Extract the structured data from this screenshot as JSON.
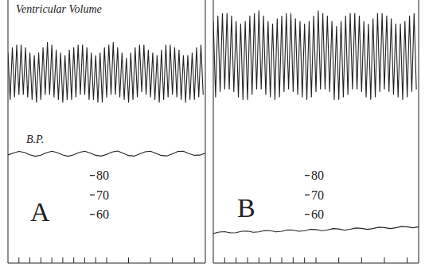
{
  "chart_data": [
    {
      "type": "line",
      "title": "A",
      "xlim": [
        0,
        18
      ],
      "xticks": [
        1,
        2,
        3,
        4,
        5,
        6,
        7,
        8,
        9,
        10,
        11,
        12,
        13,
        14,
        15,
        16,
        17
      ],
      "ylim": [
        35,
        170
      ],
      "yticks": [
        60,
        70,
        80
      ],
      "y2lim": [
        0,
        100
      ],
      "y2ticks": [],
      "tick_labels": "y",
      "grid": false,
      "series": [
        {
          "name": "Ventricular Volume",
          "color": "#222222",
          "axis": "y2",
          "x": [
            0,
            0.2,
            0.4,
            0.6,
            0.8,
            1,
            1.2,
            1.4,
            1.6,
            1.8,
            2,
            2.2,
            2.4,
            2.6,
            2.8,
            3,
            3.2,
            3.4,
            3.6,
            3.8,
            4,
            4.2,
            4.4,
            4.6,
            4.8,
            5,
            5.2,
            5.4,
            5.6,
            5.8,
            6,
            6.2,
            6.4,
            6.6,
            6.8,
            7,
            7.2,
            7.4,
            7.6,
            7.8,
            8,
            8.2,
            8.4,
            8.6,
            8.8,
            9,
            9.2,
            9.4,
            9.6,
            9.8,
            10,
            10.2,
            10.4,
            10.6,
            10.8,
            11,
            11.2,
            11.4,
            11.6,
            11.8,
            12,
            12.2,
            12.4,
            12.6,
            12.8,
            13,
            13.2,
            13.4,
            13.6,
            13.8,
            14,
            14.2,
            14.4,
            14.6,
            14.8,
            15,
            15.2,
            15.4,
            15.6,
            15.8,
            16,
            16.2,
            16.4,
            16.6,
            16.8,
            17,
            17.2,
            17.4,
            17.6,
            17.8
          ],
          "values": [
            80,
            62,
            82,
            63,
            83,
            64,
            83,
            64,
            82,
            63,
            80,
            62,
            79,
            61,
            80,
            62,
            82,
            64,
            84,
            64,
            83,
            63,
            81,
            62,
            80,
            61,
            79,
            62,
            81,
            62,
            82,
            63,
            83,
            64,
            83,
            64,
            82,
            62,
            80,
            62,
            79,
            61,
            80,
            61,
            82,
            63,
            83,
            64,
            84,
            64,
            82,
            63,
            80,
            62,
            78,
            61,
            80,
            62,
            82,
            63,
            83,
            65,
            83,
            64,
            81,
            63,
            80,
            62,
            79,
            61,
            81,
            62,
            83,
            63,
            83,
            64,
            82,
            63,
            81,
            62,
            79,
            61,
            79,
            62,
            80,
            62,
            82,
            63,
            83,
            64
          ]
        },
        {
          "name": "B.P.",
          "color": "#222222",
          "x": [
            0,
            0.5,
            1,
            1.5,
            2,
            2.5,
            3,
            3.5,
            4,
            4.5,
            5,
            5.5,
            6,
            6.5,
            7,
            7.5,
            8,
            8.5,
            9,
            9.5,
            10,
            10.5,
            11,
            11.5,
            12,
            12.5,
            13,
            13.5,
            14,
            14.5,
            15,
            15.5,
            16,
            16.5,
            17,
            17.5,
            18
          ],
          "values": [
            90.5,
            91.5,
            92.3,
            91.8,
            90.6,
            89.8,
            90.4,
            91.6,
            92.4,
            91.7,
            90.5,
            89.8,
            90.6,
            91.8,
            92.4,
            91.5,
            90.3,
            89.9,
            90.8,
            92,
            92.5,
            91.4,
            90.2,
            89.9,
            91,
            92.1,
            92.4,
            91.3,
            90.2,
            90,
            91.1,
            92.3,
            92.4,
            91.2,
            90.3,
            90.4,
            91.4
          ]
        }
      ]
    },
    {
      "type": "line",
      "title": "B",
      "xlim": [
        0,
        18
      ],
      "xticks": [
        1,
        2,
        3,
        4,
        5,
        6,
        7,
        8,
        9,
        10,
        11,
        12,
        13,
        14,
        15,
        16,
        17
      ],
      "ylim": [
        35,
        170
      ],
      "yticks": [
        60,
        70,
        80
      ],
      "y2lim": [
        0,
        100
      ],
      "y2ticks": [],
      "tick_labels": "y",
      "grid": false,
      "series": [
        {
          "color": "#222222",
          "axis": "y2",
          "x": [
            0,
            0.2,
            0.4,
            0.6,
            0.8,
            1,
            1.2,
            1.4,
            1.6,
            1.8,
            2,
            2.2,
            2.4,
            2.6,
            2.8,
            3,
            3.2,
            3.4,
            3.6,
            3.8,
            4,
            4.2,
            4.4,
            4.6,
            4.8,
            5,
            5.2,
            5.4,
            5.6,
            5.8,
            6,
            6.2,
            6.4,
            6.6,
            6.8,
            7,
            7.2,
            7.4,
            7.6,
            7.8,
            8,
            8.2,
            8.4,
            8.6,
            8.8,
            9,
            9.2,
            9.4,
            9.6,
            9.8,
            10,
            10.2,
            10.4,
            10.6,
            10.8,
            11,
            11.2,
            11.4,
            11.6,
            11.8,
            12,
            12.2,
            12.4,
            12.6,
            12.8,
            13,
            13.2,
            13.4,
            13.6,
            13.8,
            14,
            14.2,
            14.4,
            14.6,
            14.8,
            15,
            15.2,
            15.4,
            15.6,
            15.8,
            16,
            16.2,
            16.4,
            16.6,
            16.8,
            17,
            17.2,
            17.4,
            17.6,
            17.8
          ],
          "values": [
            92,
            63,
            94,
            65,
            95,
            66,
            95,
            66,
            94,
            65,
            92,
            63,
            91,
            62,
            92,
            62,
            94,
            64,
            95,
            66,
            96,
            66,
            94,
            64,
            92,
            63,
            91,
            62,
            93,
            63,
            94,
            65,
            95,
            66,
            95,
            65,
            93,
            64,
            92,
            63,
            91,
            62,
            92,
            63,
            94,
            65,
            96,
            66,
            95,
            66,
            94,
            65,
            92,
            62,
            90,
            62,
            92,
            63,
            94,
            64,
            95,
            66,
            95,
            66,
            94,
            65,
            92,
            63,
            91,
            62,
            93,
            63,
            95,
            65,
            95,
            66,
            94,
            65,
            93,
            64,
            91,
            63,
            91,
            62,
            92,
            63,
            94,
            65,
            95,
            66
          ]
        },
        {
          "color": "#222222",
          "x": [
            0,
            0.5,
            1,
            1.5,
            2,
            2.5,
            3,
            3.5,
            4,
            4.5,
            5,
            5.5,
            6,
            6.5,
            7,
            7.5,
            8,
            8.5,
            9,
            9.5,
            10,
            10.5,
            11,
            11.5,
            12,
            12.5,
            13,
            13.5,
            14,
            14.5,
            15,
            15.5,
            16,
            16.5,
            17,
            17.5,
            18
          ],
          "values": [
            50.2,
            50.9,
            51.1,
            50.5,
            50.6,
            51.3,
            51.4,
            50.8,
            51,
            51.7,
            51.6,
            51,
            51.3,
            52,
            51.9,
            51.3,
            51.6,
            52.3,
            52.2,
            51.6,
            52,
            52.7,
            52.5,
            51.9,
            52.3,
            53,
            52.8,
            52.3,
            52.7,
            53.4,
            53.2,
            52.7,
            53.1,
            53.8,
            53.6,
            53.1,
            53.6
          ]
        }
      ]
    }
  ]
}
